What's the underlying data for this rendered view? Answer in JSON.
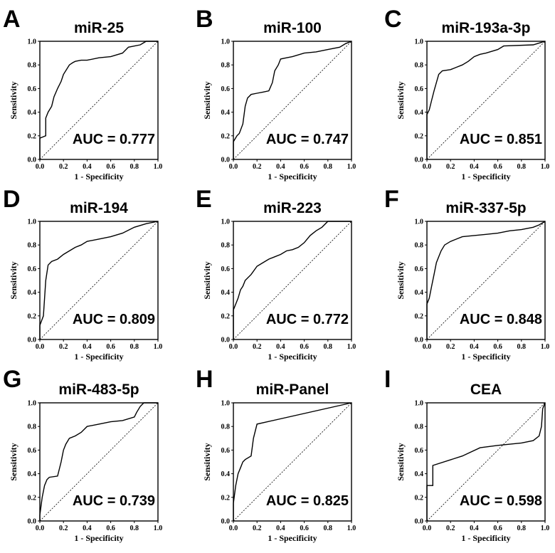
{
  "figure": {
    "chart_data": [
      {
        "type": "line",
        "letter": "A",
        "title": "miR-25",
        "auc_label": "AUC = 0.777",
        "xlabel": "1 - Specificity",
        "ylabel": "Sensitivity",
        "xlim": [
          0,
          1
        ],
        "ylim": [
          0,
          1
        ],
        "ticks": [
          "0.0",
          "0.2",
          "0.4",
          "0.6",
          "0.8",
          "1.0"
        ],
        "x": [
          0,
          0,
          0.05,
          0.05,
          0.07,
          0.1,
          0.12,
          0.15,
          0.18,
          0.2,
          0.25,
          0.28,
          0.3,
          0.35,
          0.4,
          0.5,
          0.6,
          0.7,
          0.75,
          0.85,
          0.9,
          1.0
        ],
        "y": [
          0,
          0.18,
          0.2,
          0.35,
          0.4,
          0.45,
          0.53,
          0.6,
          0.66,
          0.72,
          0.8,
          0.82,
          0.83,
          0.84,
          0.84,
          0.86,
          0.87,
          0.9,
          0.95,
          0.97,
          1.0,
          1.0
        ]
      },
      {
        "type": "line",
        "letter": "B",
        "title": "miR-100",
        "auc_label": "AUC = 0.747",
        "xlabel": "1 - Specificity",
        "ylabel": "Sensitivity",
        "xlim": [
          0,
          1
        ],
        "ylim": [
          0,
          1
        ],
        "ticks": [
          "0.0",
          "0.2",
          "0.4",
          "0.6",
          "0.8",
          "1.0"
        ],
        "x": [
          0,
          0,
          0.03,
          0.05,
          0.08,
          0.1,
          0.12,
          0.15,
          0.2,
          0.25,
          0.3,
          0.33,
          0.35,
          0.38,
          0.4,
          0.45,
          0.5,
          0.6,
          0.7,
          0.8,
          0.9,
          0.95,
          1.0
        ],
        "y": [
          0,
          0.15,
          0.2,
          0.22,
          0.3,
          0.45,
          0.52,
          0.55,
          0.56,
          0.57,
          0.58,
          0.65,
          0.75,
          0.8,
          0.85,
          0.86,
          0.87,
          0.9,
          0.91,
          0.93,
          0.95,
          0.98,
          1.0
        ]
      },
      {
        "type": "line",
        "letter": "C",
        "title": "miR-193a-3p",
        "auc_label": "AUC = 0.851",
        "xlabel": "1 - Specificity",
        "ylabel": "Sensitivity",
        "xlim": [
          0,
          1
        ],
        "ylim": [
          0,
          1
        ],
        "ticks": [
          "0.0",
          "0.2",
          "0.4",
          "0.6",
          "0.8",
          "1.0"
        ],
        "x": [
          0,
          0,
          0.02,
          0.04,
          0.06,
          0.08,
          0.1,
          0.13,
          0.2,
          0.25,
          0.3,
          0.35,
          0.4,
          0.45,
          0.5,
          0.6,
          0.65,
          0.9,
          1.0
        ],
        "y": [
          0,
          0.38,
          0.42,
          0.5,
          0.58,
          0.65,
          0.72,
          0.75,
          0.76,
          0.78,
          0.8,
          0.83,
          0.87,
          0.89,
          0.9,
          0.93,
          0.96,
          0.97,
          1.0
        ]
      },
      {
        "type": "line",
        "letter": "D",
        "title": "miR-194",
        "auc_label": "AUC = 0.809",
        "xlabel": "1 - Specificity",
        "ylabel": "Sensitivity",
        "xlim": [
          0,
          1
        ],
        "ylim": [
          0,
          1
        ],
        "ticks": [
          "0.0",
          "0.2",
          "0.4",
          "0.6",
          "0.8",
          "1.0"
        ],
        "x": [
          0,
          0,
          0.03,
          0.05,
          0.07,
          0.1,
          0.15,
          0.2,
          0.25,
          0.3,
          0.35,
          0.4,
          0.5,
          0.6,
          0.7,
          0.8,
          0.9,
          1.0
        ],
        "y": [
          0,
          0.12,
          0.2,
          0.5,
          0.63,
          0.66,
          0.68,
          0.72,
          0.75,
          0.78,
          0.8,
          0.83,
          0.85,
          0.87,
          0.9,
          0.95,
          0.98,
          1.0
        ]
      },
      {
        "type": "line",
        "letter": "E",
        "title": "miR-223",
        "auc_label": "AUC = 0.772",
        "xlabel": "1 - Specificity",
        "ylabel": "Sensitivity",
        "xlim": [
          0,
          1
        ],
        "ylim": [
          0,
          1
        ],
        "ticks": [
          "0.0",
          "0.2",
          "0.4",
          "0.6",
          "0.8",
          "1.0"
        ],
        "x": [
          0,
          0,
          0.02,
          0.04,
          0.06,
          0.08,
          0.1,
          0.15,
          0.2,
          0.25,
          0.3,
          0.35,
          0.4,
          0.45,
          0.5,
          0.55,
          0.6,
          0.65,
          0.7,
          0.75,
          0.8,
          1.0
        ],
        "y": [
          0,
          0.25,
          0.3,
          0.35,
          0.42,
          0.45,
          0.5,
          0.55,
          0.62,
          0.65,
          0.68,
          0.7,
          0.72,
          0.75,
          0.76,
          0.78,
          0.82,
          0.88,
          0.92,
          0.95,
          1.0,
          1.0
        ]
      },
      {
        "type": "line",
        "letter": "F",
        "title": "miR-337-5p",
        "auc_label": "AUC = 0.848",
        "xlabel": "1 - Specificity",
        "ylabel": "Sensitivity",
        "xlim": [
          0,
          1
        ],
        "ylim": [
          0,
          1
        ],
        "ticks": [
          "0.0",
          "0.2",
          "0.4",
          "0.6",
          "0.8",
          "1.0"
        ],
        "x": [
          0,
          0,
          0.02,
          0.04,
          0.06,
          0.08,
          0.1,
          0.12,
          0.15,
          0.2,
          0.25,
          0.3,
          0.4,
          0.5,
          0.6,
          0.7,
          0.8,
          0.9,
          0.95,
          1.0
        ],
        "y": [
          0,
          0.3,
          0.35,
          0.45,
          0.55,
          0.65,
          0.7,
          0.75,
          0.8,
          0.83,
          0.85,
          0.87,
          0.88,
          0.89,
          0.9,
          0.92,
          0.93,
          0.95,
          0.97,
          1.0
        ]
      },
      {
        "type": "line",
        "letter": "G",
        "title": "miR-483-5p",
        "auc_label": "AUC = 0.739",
        "xlabel": "1 - Specificity",
        "ylabel": "Sensitivity",
        "xlim": [
          0,
          1
        ],
        "ylim": [
          0,
          1
        ],
        "ticks": [
          "0.0",
          "0.2",
          "0.4",
          "0.6",
          "0.8",
          "1.0"
        ],
        "x": [
          0,
          0,
          0.02,
          0.04,
          0.06,
          0.08,
          0.15,
          0.18,
          0.2,
          0.22,
          0.25,
          0.3,
          0.35,
          0.38,
          0.4,
          0.5,
          0.6,
          0.7,
          0.8,
          0.82,
          0.85,
          0.88,
          1.0
        ],
        "y": [
          0,
          0.05,
          0.2,
          0.3,
          0.35,
          0.37,
          0.38,
          0.5,
          0.6,
          0.65,
          0.7,
          0.72,
          0.75,
          0.78,
          0.8,
          0.82,
          0.84,
          0.85,
          0.88,
          0.92,
          0.97,
          1.0,
          1.0
        ]
      },
      {
        "type": "line",
        "letter": "H",
        "title": "miR-Panel",
        "auc_label": "AUC = 0.825",
        "xlabel": "1 - Specificity",
        "ylabel": "Sensitivity",
        "xlim": [
          0,
          1
        ],
        "ylim": [
          0,
          1
        ],
        "ticks": [
          "0.0",
          "0.2",
          "0.4",
          "0.6",
          "0.8",
          "1.0"
        ],
        "x": [
          0,
          0,
          0.02,
          0.04,
          0.06,
          0.08,
          0.1,
          0.15,
          0.17,
          0.2,
          1.0
        ],
        "y": [
          0,
          0.15,
          0.3,
          0.4,
          0.45,
          0.5,
          0.52,
          0.55,
          0.7,
          0.82,
          1.0
        ]
      },
      {
        "type": "line",
        "letter": "I",
        "title": "CEA",
        "auc_label": "AUC = 0.598",
        "xlabel": "1 - Specificity",
        "ylabel": "Sensitivity",
        "xlim": [
          0,
          1
        ],
        "ylim": [
          0,
          1
        ],
        "ticks": [
          "0.0",
          "0.2",
          "0.4",
          "0.6",
          "0.8",
          "1.0"
        ],
        "x": [
          0,
          0,
          0.05,
          0.05,
          0.3,
          0.45,
          0.6,
          0.8,
          0.9,
          0.95,
          0.97,
          0.98,
          1.0
        ],
        "y": [
          0,
          0.3,
          0.3,
          0.47,
          0.55,
          0.62,
          0.64,
          0.66,
          0.68,
          0.72,
          0.8,
          0.95,
          1.0
        ]
      }
    ]
  }
}
